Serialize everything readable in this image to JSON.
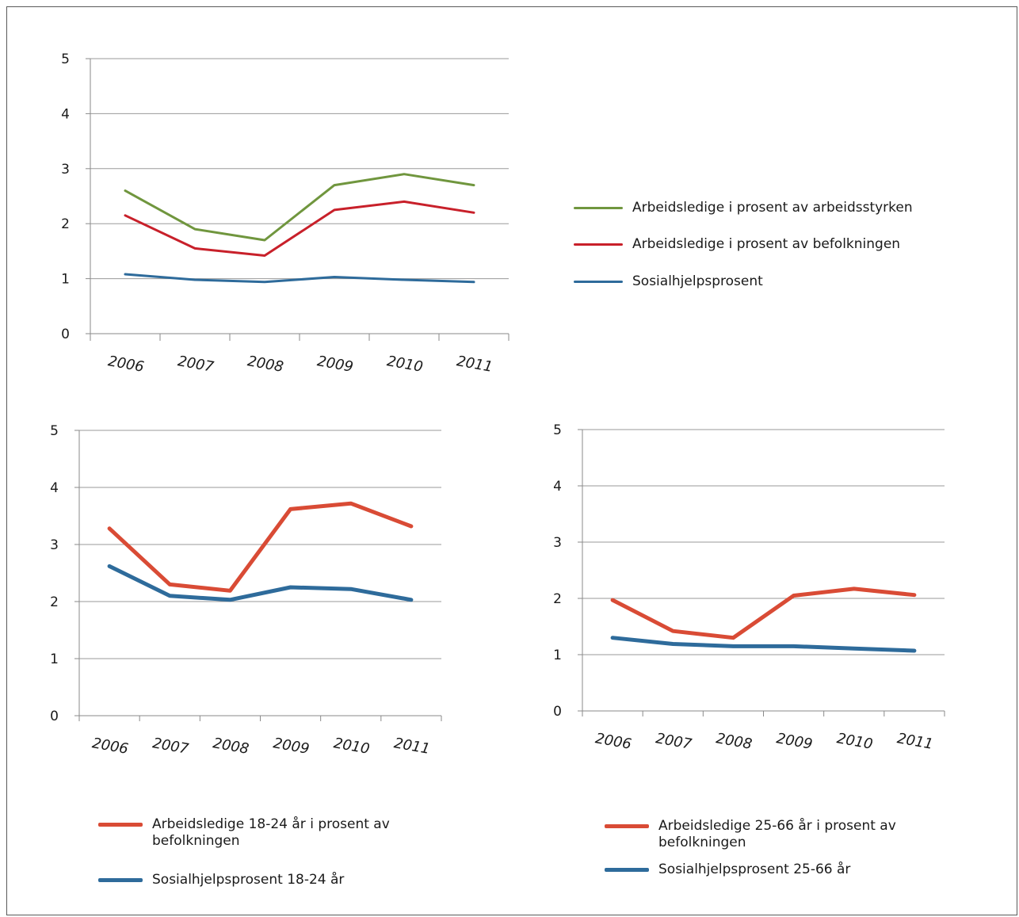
{
  "chart_data": [
    {
      "type": "line",
      "categories": [
        "2006",
        "2007",
        "2008",
        "2009",
        "2010",
        "2011"
      ],
      "ylim": [
        0,
        5
      ],
      "yticks": [
        "0",
        "1",
        "2",
        "3",
        "4",
        "5"
      ],
      "grid": true,
      "legend_position": "right",
      "series": [
        {
          "name": "Arbeidsledige i prosent av arbeidsstyrken",
          "color": "#70963e",
          "values": [
            2.6,
            1.9,
            1.7,
            2.7,
            2.9,
            2.7
          ]
        },
        {
          "name": "Arbeidsledige i prosent av befolkningen",
          "color": "#c8202a",
          "values": [
            2.15,
            1.55,
            1.42,
            2.25,
            2.4,
            2.2
          ]
        },
        {
          "name": "Sosialhjelpsprosent",
          "color": "#2e6b9b",
          "values": [
            1.08,
            0.98,
            0.94,
            1.03,
            0.98,
            0.94
          ]
        }
      ]
    },
    {
      "type": "line",
      "categories": [
        "2006",
        "2007",
        "2008",
        "2009",
        "2010",
        "2011"
      ],
      "ylim": [
        0,
        5
      ],
      "yticks": [
        "0",
        "1",
        "2",
        "3",
        "4",
        "5"
      ],
      "grid": true,
      "legend_position": "bottom",
      "series": [
        {
          "name": "Arbeidsledige 18-24 år i prosent av befolkningen",
          "color": "#d94b35",
          "values": [
            3.28,
            2.3,
            2.19,
            3.62,
            3.72,
            3.32
          ]
        },
        {
          "name": "Sosialhjelpsprosent 18-24 år",
          "color": "#2e6b9b",
          "values": [
            2.62,
            2.1,
            2.03,
            2.25,
            2.22,
            2.03
          ]
        }
      ]
    },
    {
      "type": "line",
      "categories": [
        "2006",
        "2007",
        "2008",
        "2009",
        "2010",
        "2011"
      ],
      "ylim": [
        0,
        5
      ],
      "yticks": [
        "0",
        "1",
        "2",
        "3",
        "4",
        "5"
      ],
      "grid": true,
      "legend_position": "bottom",
      "series": [
        {
          "name": "Arbeidsledige 25-66 år i prosent av befolkningen",
          "color": "#d94b35",
          "values": [
            1.97,
            1.42,
            1.3,
            2.05,
            2.17,
            2.06
          ]
        },
        {
          "name": "Sosialhjelpsprosent 25-66 år",
          "color": "#2e6b9b",
          "values": [
            1.3,
            1.19,
            1.15,
            1.15,
            1.11,
            1.07
          ]
        }
      ]
    }
  ],
  "legends": {
    "top": [
      "Arbeidsledige i prosent av arbeidsstyrken",
      "Arbeidsledige i prosent av befolkningen",
      "Sosialhjelpsprosent"
    ],
    "bottom_left": [
      "Arbeidsledige 18-24 år i prosent av befolkningen",
      "Sosialhjelpsprosent 18-24 år"
    ],
    "bottom_right": [
      "Arbeidsledige 25-66 år i prosent av befolkningen",
      "Sosialhjelpsprosent 25-66 år"
    ]
  }
}
